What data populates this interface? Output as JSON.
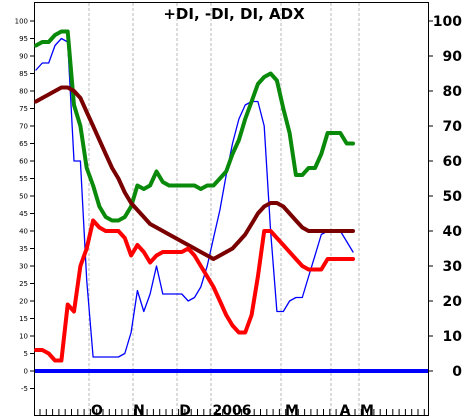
{
  "chart_data": {
    "type": "line",
    "title": "+DI, -DI, DI, ADX",
    "ylim": [
      0,
      100
    ],
    "y_ticks_left": [
      "-5",
      "0",
      "5",
      "10",
      "15",
      "20",
      "25",
      "30",
      "35",
      "40",
      "45",
      "50",
      "55",
      "60",
      "65",
      "70",
      "75",
      "80",
      "85",
      "90",
      "95",
      "100"
    ],
    "y_ticks_right": [
      "0",
      "10",
      "20",
      "30",
      "40",
      "50",
      "60",
      "70",
      "80",
      "90",
      "100"
    ],
    "x_month_labels": [
      "O",
      "N",
      "D",
      "2006",
      "M",
      "A",
      "M"
    ],
    "x_count": 51,
    "series": [
      {
        "color": "#0a8a0a",
        "values": [
          93,
          94,
          94,
          96,
          97,
          97,
          76,
          70,
          58,
          53,
          47,
          44,
          43,
          43,
          44,
          47,
          53,
          52,
          53,
          57,
          54,
          53,
          53,
          53,
          53,
          53,
          52,
          53,
          53,
          55,
          57,
          62,
          66,
          72,
          77,
          82,
          84,
          85,
          83,
          75,
          68,
          56,
          56,
          58,
          58,
          62,
          68,
          68,
          68,
          65,
          65
        ]
      },
      {
        "color": "#7a0000",
        "values": [
          77,
          78,
          79,
          80,
          81,
          81,
          80,
          78,
          74,
          70,
          66,
          62,
          58,
          55,
          51,
          48,
          46,
          44,
          42,
          41,
          40,
          39,
          38,
          37,
          36,
          35,
          34,
          33,
          32,
          33,
          34,
          35,
          37,
          39,
          42,
          45,
          47,
          48,
          48,
          47,
          45,
          43,
          41,
          40,
          40,
          40,
          40,
          40,
          40,
          40,
          40
        ]
      },
      {
        "color": "#ff0000",
        "values": [
          6,
          6,
          5,
          3,
          3,
          19,
          17,
          30,
          35,
          43,
          41,
          40,
          40,
          40,
          38,
          33,
          36,
          34,
          31,
          33,
          34,
          34,
          34,
          34,
          35,
          33,
          30,
          27,
          24,
          20,
          16,
          13,
          11,
          11,
          16,
          27,
          40,
          40,
          38,
          36,
          34,
          32,
          30,
          29,
          29,
          29,
          32,
          32,
          32,
          32,
          32
        ]
      },
      {
        "color": "#0000ff",
        "values": [
          86,
          88,
          88,
          93,
          95,
          94,
          60,
          60,
          26,
          4,
          4,
          4,
          4,
          4,
          5,
          11,
          23,
          17,
          22,
          30,
          22,
          22,
          22,
          22,
          20,
          21,
          24,
          30,
          38,
          46,
          56,
          65,
          72,
          76,
          77,
          77,
          70,
          40,
          17,
          17,
          20,
          21,
          21,
          27,
          33,
          39,
          40,
          40,
          40,
          37,
          34
        ]
      }
    ],
    "zero_line_color": "#0000ff"
  }
}
